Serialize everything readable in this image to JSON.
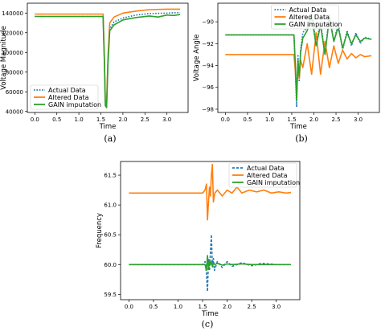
{
  "colors": {
    "actual": "#1f77b4",
    "altered": "#ff7f0e",
    "gain": "#2ca02c"
  },
  "chart_data": [
    {
      "panel": "a",
      "caption": "(a)",
      "type": "line",
      "xlabel": "Time",
      "ylabel": "Voltage Magnitude",
      "xlim": [
        -0.17,
        3.48
      ],
      "ylim": [
        39000,
        150000
      ],
      "xticks": [
        0.0,
        0.5,
        1.0,
        1.5,
        2.0,
        2.5,
        3.0
      ],
      "xtick_labels": [
        "0.0",
        "0.5",
        "1.0",
        "1.5",
        "2.0",
        "2.5",
        "3.0"
      ],
      "yticks": [
        40000,
        60000,
        80000,
        100000,
        120000,
        140000
      ],
      "ytick_labels": [
        "40000",
        "60000",
        "80000",
        "100000",
        "120000",
        "140000"
      ],
      "legend": {
        "position": "lower-left",
        "entries": [
          "Actual Data",
          "Altered Data",
          "GAIN imputation"
        ]
      },
      "series": [
        {
          "name": "Actual Data",
          "style": "dotted",
          "color": "#1f77b4",
          "x": [
            0.0,
            1.55,
            1.58,
            1.6,
            1.63,
            1.66,
            1.7,
            1.8,
            2.0,
            2.3,
            2.6,
            3.0,
            3.3
          ],
          "y": [
            136500,
            136500,
            90000,
            50000,
            45000,
            90000,
            124000,
            131000,
            135000,
            138000,
            139500,
            140000,
            140500
          ]
        },
        {
          "name": "Altered Data",
          "style": "solid",
          "color": "#ff7f0e",
          "x": [
            0.0,
            1.55,
            1.58,
            1.6,
            1.63,
            1.66,
            1.7,
            1.8,
            2.0,
            2.3,
            2.6,
            3.0,
            3.3
          ],
          "y": [
            139000,
            139000,
            95000,
            52000,
            48000,
            95000,
            130000,
            136000,
            140000,
            142000,
            143500,
            144000,
            144000
          ]
        },
        {
          "name": "GAIN imputation",
          "style": "solid",
          "color": "#2ca02c",
          "x": [
            0.0,
            1.55,
            1.58,
            1.6,
            1.63,
            1.66,
            1.7,
            1.8,
            2.0,
            2.3,
            2.6,
            2.8,
            3.0,
            3.15,
            3.3
          ],
          "y": [
            136500,
            136500,
            90000,
            46000,
            44000,
            88000,
            122000,
            128000,
            133000,
            135500,
            137000,
            136000,
            138000,
            137500,
            138500
          ]
        }
      ]
    },
    {
      "panel": "b",
      "caption": "(b)",
      "type": "line",
      "xlabel": "Time",
      "ylabel": "Voltage Angle",
      "xlim": [
        -0.17,
        3.48
      ],
      "ylim": [
        -98.3,
        -88.3
      ],
      "xticks": [
        0.0,
        0.5,
        1.0,
        1.5,
        2.0,
        2.5,
        3.0
      ],
      "xtick_labels": [
        "0.0",
        "0.5",
        "1.0",
        "1.5",
        "2.0",
        "2.5",
        "3.0"
      ],
      "yticks": [
        -98,
        -96,
        -94,
        -92,
        -90
      ],
      "ytick_labels": [
        "−98",
        "−96",
        "−94",
        "−92",
        "−90"
      ],
      "legend": {
        "position": "upper-center",
        "entries": [
          "Actual Data",
          "Altered Data",
          "GAIN imputation"
        ]
      },
      "series": [
        {
          "name": "Actual Data",
          "style": "dotted",
          "color": "#1f77b4",
          "x": [
            0.0,
            1.55,
            1.58,
            1.61,
            1.64,
            1.67,
            1.7,
            1.75,
            1.85,
            1.95,
            2.05,
            2.15,
            2.25,
            2.35,
            2.45,
            2.55,
            2.65,
            2.75,
            2.85,
            2.95,
            3.05,
            3.15,
            3.3
          ],
          "y": [
            -91.2,
            -91.2,
            -94.5,
            -97.8,
            -93.0,
            -95.5,
            -92.5,
            -91.0,
            -90.5,
            -89.0,
            -92.0,
            -90.0,
            -93.0,
            -89.3,
            -91.8,
            -90.2,
            -92.6,
            -90.8,
            -92.2,
            -91.0,
            -92.0,
            -91.4,
            -91.6
          ]
        },
        {
          "name": "Altered Data",
          "style": "solid",
          "color": "#ff7f0e",
          "x": [
            0.0,
            1.55,
            1.58,
            1.61,
            1.64,
            1.67,
            1.7,
            1.75,
            1.85,
            1.95,
            2.05,
            2.15,
            2.25,
            2.35,
            2.45,
            2.55,
            2.65,
            2.75,
            2.85,
            2.95,
            3.05,
            3.15,
            3.3
          ],
          "y": [
            -93.0,
            -93.0,
            -94.5,
            -96.8,
            -94.0,
            -95.2,
            -93.5,
            -94.2,
            -92.0,
            -94.8,
            -91.0,
            -94.8,
            -91.8,
            -94.2,
            -92.2,
            -93.8,
            -92.6,
            -93.4,
            -92.9,
            -93.3,
            -93.0,
            -93.2,
            -93.1
          ]
        },
        {
          "name": "GAIN imputation",
          "style": "solid",
          "color": "#2ca02c",
          "x": [
            0.0,
            1.55,
            1.58,
            1.61,
            1.64,
            1.67,
            1.7,
            1.75,
            1.85,
            1.95,
            2.05,
            2.15,
            2.25,
            2.35,
            2.45,
            2.55,
            2.65,
            2.75,
            2.85,
            2.95,
            3.05,
            3.15,
            3.3
          ],
          "y": [
            -91.2,
            -91.2,
            -93.8,
            -97.2,
            -93.5,
            -95.0,
            -92.8,
            -91.5,
            -90.8,
            -89.4,
            -92.2,
            -90.3,
            -93.0,
            -89.6,
            -91.8,
            -90.5,
            -92.4,
            -91.0,
            -92.0,
            -91.2,
            -91.8,
            -91.5,
            -91.6
          ]
        }
      ]
    },
    {
      "panel": "c",
      "caption": "(c)",
      "type": "line",
      "xlabel": "Time",
      "ylabel": "Frequency",
      "xlim": [
        -0.17,
        3.48
      ],
      "ylim": [
        59.41,
        61.73
      ],
      "xticks": [
        0.0,
        0.5,
        1.0,
        1.5,
        2.0,
        2.5,
        3.0
      ],
      "xtick_labels": [
        "0.0",
        "0.5",
        "1.0",
        "1.5",
        "2.0",
        "2.5",
        "3.0"
      ],
      "yticks": [
        59.5,
        60.0,
        60.5,
        61.0,
        61.5
      ],
      "ytick_labels": [
        "59.5",
        "60.0",
        "60.5",
        "61.0",
        "61.5"
      ],
      "legend": {
        "position": "upper-right",
        "entries": [
          "Actual Data",
          "Altered Data",
          "GAIN imputation"
        ]
      },
      "series": [
        {
          "name": "Actual Data",
          "style": "dashed",
          "color": "#1f77b4",
          "x": [
            0.0,
            1.5,
            1.55,
            1.58,
            1.6,
            1.62,
            1.64,
            1.66,
            1.68,
            1.7,
            1.72,
            1.74,
            1.8,
            1.9,
            2.0,
            2.1,
            2.3,
            2.5,
            2.7,
            3.0,
            3.3
          ],
          "y": [
            60.0,
            60.0,
            60.05,
            59.85,
            59.55,
            60.1,
            59.9,
            60.2,
            60.5,
            59.95,
            60.1,
            59.9,
            60.05,
            59.95,
            60.05,
            59.97,
            60.03,
            59.98,
            60.02,
            60.0,
            60.0
          ]
        },
        {
          "name": "Altered Data",
          "style": "solid",
          "color": "#ff7f0e",
          "x": [
            0.0,
            1.5,
            1.55,
            1.58,
            1.6,
            1.62,
            1.64,
            1.66,
            1.68,
            1.7,
            1.72,
            1.75,
            1.8,
            1.9,
            2.0,
            2.1,
            2.2,
            2.3,
            2.45,
            2.6,
            2.75,
            2.9,
            3.05,
            3.2,
            3.3
          ],
          "y": [
            61.2,
            61.2,
            61.25,
            61.35,
            60.75,
            61.05,
            61.3,
            61.15,
            61.5,
            61.68,
            61.05,
            61.2,
            61.25,
            61.15,
            61.25,
            61.2,
            61.3,
            61.2,
            61.25,
            61.22,
            61.25,
            61.2,
            61.22,
            61.2,
            61.21
          ]
        },
        {
          "name": "GAIN imputation",
          "style": "solid",
          "color": "#2ca02c",
          "x": [
            0.0,
            1.5,
            1.55,
            1.58,
            1.6,
            1.62,
            1.64,
            1.66,
            1.68,
            1.7,
            1.72,
            1.75,
            1.8,
            1.9,
            2.0,
            2.1,
            2.3,
            2.5,
            2.7,
            3.0,
            3.3
          ],
          "y": [
            60.0,
            60.0,
            60.0,
            59.9,
            60.15,
            59.92,
            60.08,
            60.0,
            60.05,
            59.97,
            60.02,
            60.0,
            60.02,
            59.99,
            60.01,
            60.0,
            60.01,
            60.0,
            60.0,
            60.0,
            60.0
          ]
        }
      ]
    }
  ]
}
